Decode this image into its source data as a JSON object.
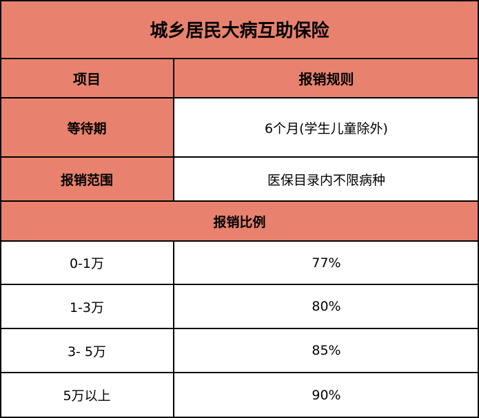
{
  "title": "城乡居民大病互助保险",
  "header": {
    "item": "项目",
    "rule": "报销规则"
  },
  "rows": [
    {
      "label": "等待期",
      "value": "6个月(学生儿童除外)"
    },
    {
      "label": "报销范围",
      "value": "医保目录内不限病种"
    }
  ],
  "ratio_title": "报销比例",
  "ratios": [
    {
      "range": "0-1万",
      "percent": "77%"
    },
    {
      "range": "1-3万",
      "percent": "80%"
    },
    {
      "range": "3- 5万",
      "percent": "85%"
    },
    {
      "range": "5万以上",
      "percent": "90%"
    }
  ],
  "colors": {
    "header_fill": "#E8826E",
    "border": "#000000"
  }
}
